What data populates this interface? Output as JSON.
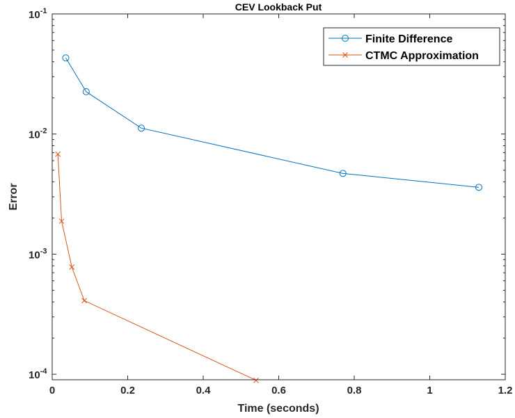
{
  "chart_data": {
    "type": "line",
    "title": "CEV Lookback Put",
    "xlabel": "Time (seconds)",
    "ylabel": "Error",
    "xlim": [
      0,
      1.2
    ],
    "ylim": [
      9e-05,
      0.1
    ],
    "yscale": "log",
    "xticks": [
      0,
      0.2,
      0.4,
      0.6,
      0.8,
      1,
      1.2
    ],
    "xtick_labels": [
      "0",
      "0.2",
      "0.4",
      "0.6",
      "0.8",
      "1",
      "1.2"
    ],
    "yticks": [
      0.0001,
      0.001,
      0.01,
      0.1
    ],
    "ytick_labels": [
      {
        "base": "10",
        "exp": "-4"
      },
      {
        "base": "10",
        "exp": "-3"
      },
      {
        "base": "10",
        "exp": "-2"
      },
      {
        "base": "10",
        "exp": "-1"
      }
    ],
    "grid": false,
    "legend_position": "top-right",
    "series": [
      {
        "name": "Finite Difference",
        "color": "#0072BD",
        "marker": "circle",
        "x": [
          0.036,
          0.09,
          0.236,
          0.77,
          1.13
        ],
        "y": [
          0.043,
          0.0225,
          0.0112,
          0.0047,
          0.0036
        ]
      },
      {
        "name": "CTMC Approximation",
        "color": "#D95319",
        "marker": "x",
        "x": [
          0.015,
          0.025,
          0.052,
          0.085,
          0.54
        ],
        "y": [
          0.0068,
          0.00188,
          0.00078,
          0.00041,
          8.9e-05
        ]
      }
    ]
  }
}
